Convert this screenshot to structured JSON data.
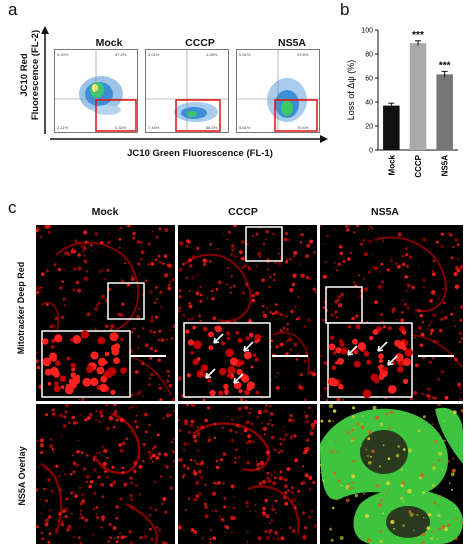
{
  "panel_labels": {
    "a": "a",
    "b": "b",
    "c": "c"
  },
  "flow": {
    "ylabel_line1": "JC10 Red",
    "ylabel_line2": "Fluorescence (FL-2)",
    "xlabel": "JC10 Green Fluorescence (FL-1)",
    "panels": [
      {
        "title": "Mock",
        "q1": "0.20%",
        "q2": "97.4%",
        "q3": "0.32%",
        "q4": "2.11%"
      },
      {
        "title": "CCCP",
        "q1": "0.01%",
        "q2": "4.08%",
        "q3": "88.5%",
        "q4": "7.44%"
      },
      {
        "title": "NS5A",
        "q1": "0.01%",
        "q2": "23.8%",
        "q3": "70.4%",
        "q4": "5.81%"
      }
    ]
  },
  "chart_data": {
    "type": "bar",
    "categories": [
      "Mock",
      "CCCP",
      "NS5A"
    ],
    "values": [
      37,
      89,
      63
    ],
    "errors": [
      2,
      2,
      2.5
    ],
    "significance": [
      "",
      "***",
      "***"
    ],
    "ylabel": "Loss of Δψ (%)",
    "yticks": [
      "0",
      "20",
      "40",
      "60",
      "80",
      "100"
    ],
    "ylim": [
      0,
      100
    ],
    "colors": [
      "#111111",
      "#aaaaaa",
      "#777777"
    ]
  },
  "microscopy": {
    "columns": [
      "Mock",
      "CCCP",
      "NS5A"
    ],
    "row1_label": "Mitotracker Deep Red",
    "row2_label": "NS5A Overlay"
  }
}
